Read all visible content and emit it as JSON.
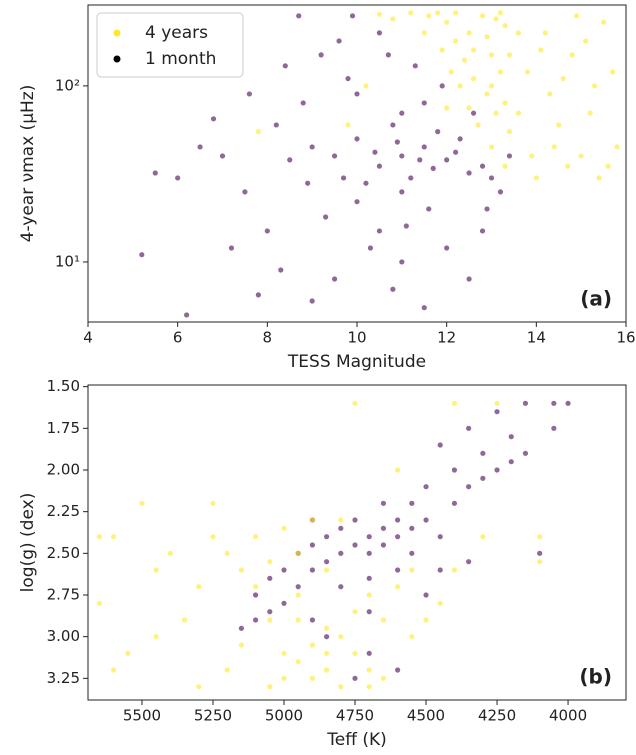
{
  "chart_data": [
    {
      "type": "scatter",
      "log_y": true,
      "legend": "upper left",
      "xlim": [
        4,
        16
      ],
      "ylim": [
        4.56,
        288
      ],
      "xticks": [
        4,
        6,
        8,
        10,
        12,
        14,
        16
      ],
      "yticks": [
        {
          "value": 10,
          "label": "10¹"
        },
        {
          "value": 100,
          "label": "10²"
        }
      ],
      "x_label": "TESS Magnitude",
      "y_label": "4-year νmax (μHz)",
      "annotation": "(a)",
      "series": [
        {
          "name": "4 years",
          "color": "#fde725",
          "x": [
            12.5,
            13,
            12.8,
            12.2,
            13.2,
            12.9,
            13.1,
            12.6,
            13.3,
            12.4,
            12.0,
            11.8,
            11.5,
            12.7,
            13.0,
            13.3,
            12.3,
            13.2,
            12.1,
            11.9,
            12.9,
            13.1,
            13.3,
            12.5,
            13.0,
            12.6,
            11.6,
            12.2,
            13.4,
            13.4,
            14.2,
            14.8,
            15.3,
            14.5,
            15.0,
            15.6,
            14.0,
            13.8,
            14.3,
            15.5,
            14.9,
            13.9,
            14.6,
            15.2,
            15.8,
            14.1,
            15.4,
            13.6,
            14.7,
            15.1,
            11.2,
            10.8,
            10.5,
            13.6,
            14.4,
            15.7,
            12.0,
            10.2,
            9.8,
            7.8
          ],
          "values": [
            200,
            150,
            250,
            180,
            120,
            90,
            70,
            110,
            220,
            140,
            230,
            260,
            200,
            60,
            45,
            35,
            100,
            260,
            120,
            160,
            190,
            240,
            80,
            75,
            100,
            160,
            250,
            260,
            150,
            55,
            200,
            150,
            100,
            60,
            40,
            35,
            30,
            120,
            90,
            230,
            250,
            40,
            110,
            70,
            45,
            160,
            30,
            200,
            35,
            180,
            260,
            240,
            255,
            70,
            45,
            120,
            75,
            100,
            60,
            55
          ]
        },
        {
          "name": "1 month",
          "color": "#440154",
          "x": [
            11,
            10.5,
            11.5,
            10,
            12,
            11.2,
            9.5,
            10.8,
            11.8,
            12.5,
            10.2,
            9,
            8.5,
            11,
            10,
            9.8,
            9.2,
            10.5,
            8.7,
            11.5,
            12.3,
            12.8,
            13,
            11,
            10,
            11.6,
            10.5,
            12,
            11,
            9.5,
            10.8,
            11.5,
            9,
            12.5,
            8,
            7.5,
            7,
            6.5,
            6,
            5.5,
            5.2,
            6.2,
            7.8,
            8.3,
            9.3,
            10.3,
            12.8,
            13.2,
            13.4,
            12.6,
            11.9,
            11.3,
            10.7,
            9.6,
            8.8,
            8.2,
            7.6,
            7.2,
            8.9,
            10.9,
            11.7,
            12.2,
            10.4,
            9.7,
            11.4,
            12.9,
            9.9,
            8.4,
            6.8,
            11.1
          ],
          "values": [
            40,
            35,
            45,
            50,
            38,
            30,
            40,
            60,
            55,
            32,
            28,
            45,
            38,
            70,
            90,
            110,
            150,
            200,
            250,
            80,
            50,
            35,
            30,
            25,
            22,
            20,
            15,
            12,
            10,
            8,
            7,
            5.5,
            6,
            8,
            15,
            25,
            40,
            45,
            30,
            32,
            11,
            5,
            6.5,
            9,
            18,
            12,
            15,
            25,
            40,
            70,
            100,
            130,
            150,
            180,
            80,
            60,
            90,
            12,
            28,
            48,
            34,
            42,
            42,
            30,
            38,
            20,
            250,
            130,
            65,
            16
          ]
        }
      ]
    },
    {
      "type": "scatter",
      "legend": "none",
      "xlim": [
        5690,
        3796
      ],
      "ylim": [
        3.38,
        1.49
      ],
      "xticks": [
        5500,
        5250,
        5000,
        4750,
        4500,
        4250,
        4000
      ],
      "yticks": [
        {
          "value": 1.5,
          "label": "1.50"
        },
        1.75,
        {
          "value": 2,
          "label": "2.00"
        },
        2.25,
        {
          "value": 2.5,
          "label": "2.50"
        },
        2.75,
        {
          "value": 3,
          "label": "3.00"
        },
        3.25
      ],
      "x_label": "Teff (K)",
      "y_label": "log(g) (dex)",
      "annotation": "(b)",
      "series": [
        {
          "name": "1 month",
          "color": "#440154",
          "x": [
            4150,
            4250,
            4350,
            4050,
            4200,
            4300,
            4400,
            4450,
            4500,
            4550,
            4600,
            4650,
            4700,
            4750,
            4800,
            4850,
            4900,
            4950,
            5000,
            5050,
            5100,
            5150,
            4700,
            4650,
            4600,
            4550,
            4500,
            4750,
            4800,
            4850,
            4900,
            4950,
            4550,
            4450,
            4400,
            4350,
            4300,
            4250,
            4200,
            4600,
            4700,
            4800,
            5000,
            5050,
            4900,
            4850,
            4700,
            4600,
            4750,
            4500,
            4350,
            4050,
            4000,
            4150,
            4100,
            4650,
            4900,
            5100,
            4450,
            4700
          ],
          "values": [
            1.6,
            1.65,
            1.75,
            1.6,
            1.8,
            1.9,
            2.0,
            1.85,
            2.1,
            2.2,
            2.3,
            2.35,
            2.4,
            2.45,
            2.5,
            2.55,
            2.6,
            2.7,
            2.8,
            2.85,
            2.9,
            2.95,
            2.5,
            2.45,
            2.4,
            2.35,
            2.3,
            2.3,
            2.35,
            2.4,
            2.45,
            2.5,
            2.5,
            2.4,
            2.2,
            2.1,
            2.05,
            2.0,
            1.95,
            2.6,
            2.65,
            2.7,
            2.6,
            2.65,
            2.9,
            3.0,
            3.1,
            3.2,
            3.25,
            2.75,
            2.55,
            1.75,
            1.6,
            1.9,
            2.5,
            2.2,
            2.3,
            2.75,
            2.6,
            2.85
          ]
        },
        {
          "name": "4 years",
          "color": "#fde725",
          "x": [
            4900,
            4800,
            4850,
            4950,
            5000,
            4750,
            4700,
            4900,
            4800,
            5050,
            4650,
            4850,
            4750,
            4700,
            4600,
            4950,
            5100,
            5150,
            5200,
            5100,
            5000,
            4900,
            4800,
            4950,
            5050,
            5250,
            5300,
            5350,
            5450,
            5550,
            5650,
            5600,
            5500,
            5400,
            5200,
            5300,
            5150,
            4550,
            4500,
            4450,
            4400,
            4300,
            4600,
            4750,
            4400,
            4250,
            4100,
            4100,
            5450,
            5600,
            5000,
            4850,
            4950,
            5050,
            4650,
            4700,
            4550,
            5250,
            5650,
            4850
          ],
          "values": [
            3.25,
            3.3,
            3.2,
            3.15,
            3.25,
            3.1,
            3.2,
            3.05,
            3.0,
            3.3,
            3.25,
            2.95,
            2.85,
            2.75,
            2.7,
            2.9,
            2.7,
            2.6,
            2.5,
            2.4,
            2.35,
            2.3,
            2.3,
            2.5,
            2.55,
            2.4,
            2.7,
            2.9,
            3.0,
            3.1,
            2.4,
            2.4,
            2.2,
            2.5,
            3.2,
            3.3,
            3.05,
            3.0,
            2.9,
            2.8,
            2.6,
            2.4,
            2.0,
            1.6,
            1.6,
            1.6,
            2.4,
            2.55,
            2.6,
            3.2,
            3.1,
            3.1,
            2.75,
            2.9,
            2.9,
            3.3,
            2.6,
            2.2,
            2.8,
            2.6
          ]
        }
      ]
    }
  ]
}
